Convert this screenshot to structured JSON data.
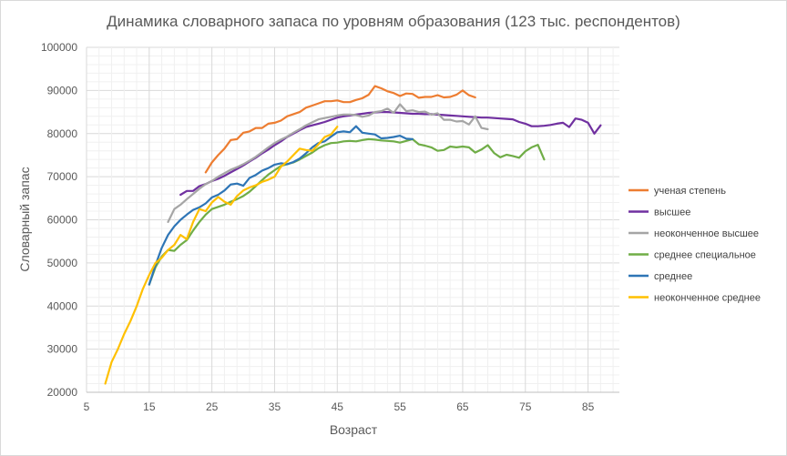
{
  "chart_data": {
    "type": "line",
    "title": "Динамика словарного запаса по уровням образования (123 тыс. респондентов)",
    "xlabel": "Возраст",
    "ylabel": "Словарный запас",
    "xlim": [
      5,
      90
    ],
    "ylim": [
      20000,
      100000
    ],
    "x_ticks": [
      5,
      15,
      25,
      35,
      45,
      55,
      65,
      75,
      85
    ],
    "x_tick_labels": [
      "5",
      "15",
      "25",
      "35",
      "45",
      "55",
      "65",
      "75",
      "85"
    ],
    "y_ticks": [
      20000,
      30000,
      40000,
      50000,
      60000,
      70000,
      80000,
      90000,
      100000
    ],
    "y_tick_labels": [
      "20000",
      "30000",
      "40000",
      "50000",
      "60000",
      "70000",
      "80000",
      "90000",
      "100000"
    ],
    "grid": true,
    "legend_position": "right",
    "series": [
      {
        "name": "ученая степень",
        "color": "#ED7D31",
        "x": [
          24,
          25,
          26,
          27,
          28,
          29,
          30,
          31,
          32,
          33,
          34,
          35,
          36,
          37,
          38,
          39,
          40,
          41,
          42,
          43,
          44,
          45,
          46,
          47,
          48,
          49,
          50,
          51,
          52,
          53,
          54,
          55,
          56,
          57,
          58,
          59,
          60,
          61,
          62,
          63,
          64,
          65,
          66,
          67
        ],
        "y": [
          71000,
          73300,
          75000,
          76500,
          78500,
          78700,
          80200,
          80500,
          81300,
          81300,
          82300,
          82500,
          83000,
          84000,
          84500,
          85000,
          86000,
          86500,
          87000,
          87500,
          87500,
          87700,
          87300,
          87300,
          87800,
          88200,
          89000,
          91000,
          90500,
          89800,
          89400,
          88700,
          89300,
          89200,
          88300,
          88500,
          88500,
          88900,
          88400,
          88500,
          89000,
          90000,
          88900,
          88400
        ]
      },
      {
        "name": "высшее",
        "color": "#7030A0",
        "x": [
          20,
          21,
          22,
          23,
          24,
          25,
          26,
          27,
          28,
          29,
          30,
          31,
          32,
          33,
          34,
          35,
          36,
          37,
          38,
          39,
          40,
          41,
          42,
          43,
          44,
          45,
          46,
          47,
          48,
          49,
          50,
          51,
          52,
          53,
          54,
          55,
          56,
          57,
          58,
          59,
          60,
          61,
          62,
          63,
          64,
          65,
          66,
          67,
          68,
          69,
          70,
          71,
          72,
          73,
          74,
          75,
          76,
          77,
          78,
          79,
          80,
          81,
          82,
          83,
          84,
          85,
          86,
          87
        ],
        "y": [
          65800,
          66700,
          66700,
          67800,
          68300,
          69000,
          69500,
          70200,
          71000,
          71800,
          72600,
          73500,
          74400,
          75400,
          76300,
          77300,
          78200,
          79200,
          80000,
          80800,
          81500,
          81900,
          82300,
          82700,
          83200,
          83700,
          84000,
          84200,
          84400,
          84600,
          84800,
          84900,
          85000,
          85000,
          84900,
          84800,
          84700,
          84600,
          84600,
          84500,
          84500,
          84400,
          84300,
          84200,
          84100,
          84000,
          83900,
          83800,
          83700,
          83700,
          83600,
          83500,
          83400,
          83300,
          82700,
          82300,
          81700,
          81700,
          81800,
          82000,
          82300,
          82500,
          81500,
          83500,
          83200,
          82500,
          80000,
          81900
        ]
      },
      {
        "name": "неоконченное  высшее",
        "color": "#A5A5A5",
        "x": [
          18,
          19,
          20,
          21,
          22,
          23,
          24,
          25,
          26,
          27,
          28,
          29,
          30,
          31,
          32,
          33,
          34,
          35,
          36,
          37,
          38,
          39,
          40,
          41,
          42,
          43,
          44,
          45,
          46,
          47,
          48,
          49,
          50,
          51,
          52,
          53,
          54,
          55,
          56,
          57,
          58,
          59,
          60,
          61,
          62,
          63,
          64,
          65,
          66,
          67,
          68,
          69
        ],
        "y": [
          59500,
          62500,
          63500,
          64800,
          66000,
          67200,
          68300,
          69000,
          70000,
          70800,
          71600,
          72200,
          72900,
          73700,
          74600,
          75700,
          76800,
          77800,
          78600,
          79300,
          80200,
          81000,
          81900,
          82600,
          83300,
          83600,
          83900,
          84200,
          84400,
          84400,
          84300,
          83900,
          84200,
          85000,
          85200,
          85800,
          84800,
          86800,
          85200,
          85400,
          85000,
          85100,
          84400,
          84700,
          83200,
          83200,
          82800,
          82900,
          82100,
          84000,
          81300,
          81000
        ]
      },
      {
        "name": "среднее  специальное",
        "color": "#70AD47",
        "x": [
          15,
          16,
          17,
          18,
          19,
          20,
          21,
          22,
          23,
          24,
          25,
          26,
          27,
          28,
          29,
          30,
          31,
          32,
          33,
          34,
          35,
          36,
          37,
          38,
          39,
          40,
          41,
          42,
          43,
          44,
          45,
          46,
          47,
          48,
          49,
          50,
          51,
          52,
          53,
          54,
          55,
          56,
          57,
          58,
          59,
          60,
          61,
          62,
          63,
          64,
          65,
          66,
          67,
          68,
          69,
          70,
          71,
          72,
          73,
          74,
          75,
          76,
          77,
          78
        ],
        "y": [
          45000,
          49000,
          51500,
          53000,
          52800,
          54200,
          55300,
          57500,
          59500,
          61200,
          62500,
          63000,
          63500,
          64200,
          64800,
          65500,
          66500,
          67800,
          69200,
          70500,
          71500,
          72500,
          72900,
          73300,
          74000,
          74800,
          75600,
          76600,
          77300,
          77800,
          77900,
          78200,
          78300,
          78200,
          78500,
          78700,
          78600,
          78400,
          78300,
          78200,
          77900,
          78300,
          78700,
          77500,
          77200,
          76800,
          76000,
          76200,
          77000,
          76800,
          77000,
          76800,
          75600,
          76300,
          77300,
          75500,
          74500,
          75100,
          74800,
          74400,
          75900,
          76800,
          77400,
          74000
        ]
      },
      {
        "name": "среднее",
        "color": "#2E75B6",
        "x": [
          15,
          16,
          17,
          18,
          19,
          20,
          21,
          22,
          23,
          24,
          25,
          26,
          27,
          28,
          29,
          30,
          31,
          32,
          33,
          34,
          35,
          36,
          37,
          38,
          39,
          40,
          41,
          42,
          43,
          44,
          45,
          46,
          47,
          48,
          49,
          50,
          51,
          52,
          53,
          54,
          55,
          56,
          57
        ],
        "y": [
          45000,
          49500,
          53500,
          56500,
          58500,
          60000,
          61200,
          62300,
          62900,
          63800,
          65200,
          65800,
          66800,
          68200,
          68400,
          67900,
          69700,
          70400,
          71400,
          72000,
          72800,
          73100,
          72900,
          73400,
          74200,
          75400,
          76800,
          77800,
          78200,
          79300,
          80300,
          80500,
          80300,
          81700,
          80200,
          80000,
          79800,
          78900,
          79000,
          79200,
          79500,
          78800,
          78700
        ]
      },
      {
        "name": "неоконченное  среднее",
        "color": "#FFC000",
        "x": [
          8,
          9,
          10,
          11,
          12,
          13,
          14,
          15,
          16,
          17,
          18,
          19,
          20,
          21,
          22,
          23,
          24,
          25,
          26,
          27,
          28,
          29,
          30,
          31,
          32,
          33,
          34,
          35,
          36,
          37,
          38,
          39,
          40,
          41,
          42,
          43,
          44,
          45
        ],
        "y": [
          22000,
          27000,
          30000,
          33500,
          36500,
          40000,
          44000,
          47200,
          50000,
          51200,
          53000,
          54200,
          56500,
          55500,
          59500,
          62500,
          62000,
          64000,
          65300,
          64200,
          63500,
          65500,
          66800,
          67500,
          68000,
          68800,
          69300,
          70000,
          72300,
          73500,
          75000,
          76500,
          76200,
          76000,
          77500,
          79200,
          79800,
          81600
        ]
      }
    ]
  }
}
